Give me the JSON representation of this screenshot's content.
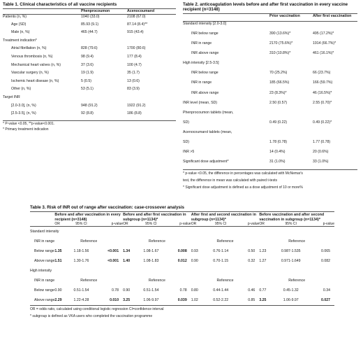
{
  "table1": {
    "title": "Table 1. Clinical characteristics of all vaccine recipients",
    "col_headers": [
      "",
      "Phenprocoumon",
      "Acenocoumarol"
    ],
    "rows": [
      {
        "label": "Patients (n, %)",
        "v1": "1040 (33.0)",
        "v2": "2108 (67.0)",
        "indent": false
      },
      {
        "label": "Age (SD)",
        "v1": "85.93 (9.1)",
        "v2": "87.14 (8.4)**",
        "indent": true
      },
      {
        "label": "Male (n, %)",
        "v1": "465 (44.7)",
        "v2": "915 (43.4)",
        "indent": true
      },
      {
        "label": "Treatment indication*",
        "v1": "",
        "v2": "",
        "indent": false
      },
      {
        "label": "Atrial fibrillation (n, %)",
        "v1": "828 (79.6)",
        "v2": "1700 (80.6)",
        "indent": true
      },
      {
        "label": "Venous thrombosis (n, %)",
        "v1": "98 (9.4)",
        "v2": "177 (8.4)",
        "indent": true
      },
      {
        "label": "Mechanical heart valves (n, %)",
        "v1": "37 (3.6)",
        "v2": "100 (4.7)",
        "indent": true
      },
      {
        "label": "Vascular surgery (n, %)",
        "v1": "19 (1.9)",
        "v2": "35 (1.7)",
        "indent": true
      },
      {
        "label": "Ischemic heart disease (n, %)",
        "v1": "5 (0.5)",
        "v2": "13 (0.6)",
        "indent": true
      },
      {
        "label": "Other (n, %)",
        "v1": "53 (5.1)",
        "v2": "83 (3.9)",
        "indent": true
      },
      {
        "label": "Target INR",
        "v1": "",
        "v2": "",
        "indent": false
      },
      {
        "label": "[2.0-3.0], (n, %)",
        "v1": "948 (91.2)",
        "v2": "1922 (91.2)",
        "indent": true
      },
      {
        "label": "[2.5-3.5], (n, %)",
        "v1": "92 (8.8)",
        "v2": "186 (8.8)",
        "indent": true
      }
    ],
    "footnotes": [
      "* P-value <0.05, **p-value<0.001.",
      "* Primary treatment indication"
    ]
  },
  "table2": {
    "title": "Table 2. anticoagulation levels before and after first vaccination in every vaccine recipient (n=3148)",
    "col_headers": [
      "",
      "Prior vaccination",
      "After first vaccination"
    ],
    "rows": [
      {
        "label": "Standard intensity [2.0-3.0]",
        "v1": "",
        "v2": "",
        "indent": false
      },
      {
        "label": "INR below range",
        "v1": "390 (13.6%)*",
        "v2": "495 (17.2%)*",
        "indent": true
      },
      {
        "label": "INR in range",
        "v1": "2170 (75.6%)*",
        "v2": "1914 (66.7%)*",
        "indent": true
      },
      {
        "label": "INR above range",
        "v1": "310 (10.8%)*",
        "v2": "461 (16.1%)*",
        "indent": true
      },
      {
        "label": "High intensity [2.5-3.5]",
        "v1": "",
        "v2": "",
        "indent": false
      },
      {
        "label": "INR below range",
        "v1": "70 (25.2%)",
        "v2": "66 (23.7%)",
        "indent": true
      },
      {
        "label": "INR in range",
        "v1": "185 (66.5%)",
        "v2": "166 (59.7%)",
        "indent": true
      },
      {
        "label": "INR above range",
        "v1": "23 (8.3%)*",
        "v2": "46 (16.5%)*",
        "indent": true
      },
      {
        "label": "INR level (mean, SD)",
        "v1": "2.50 (0.57)",
        "v2": "2.55 (0.70)*",
        "indent": false
      },
      {
        "label": "Phenprocoumon tablets (mean,",
        "v1": "",
        "v2": "",
        "indent": false
      },
      {
        "label": "SD)",
        "v1": "0.49 (0.22)",
        "v2": "0.49 (0.22)*",
        "indent": false
      },
      {
        "label": "Acenocoumarol tablets (mean,",
        "v1": "",
        "v2": "",
        "indent": false
      },
      {
        "label": "SD)",
        "v1": "1.78 (0.78)",
        "v2": "1.77 (0.78)",
        "indent": false
      },
      {
        "label": "INR >5",
        "v1": "14 (0.4%)",
        "v2": "20 (0.6%)",
        "indent": false
      },
      {
        "label": "Significant dose adjustment*",
        "v1": "31 (1.0%)",
        "v2": "33 (1.0%)",
        "indent": false
      }
    ],
    "footnotes": [
      "* p-value <0.05, the difference in percentages was calculated with McNemar's",
      "test, the difference in mean was calculated with paired t-tests",
      "* Significant dose adjustment is defined as a dose adjustment of 10 or more%"
    ]
  },
  "table3": {
    "title": "Table 3. Risk of INR out of range after vaccination: case-crossover analysis",
    "groups": [
      "Before and after vaccination in every recipient (n=3148)",
      "Before and after first vaccination in subgroup (n=1134)*",
      "After first and second vaccination in subgroup (n=1134)*",
      "Before vaccination and after second vaccination in subgroup (n=1134)*"
    ],
    "subheaders": [
      "OR",
      "95% CI",
      "p-value"
    ],
    "sections": [
      {
        "label": "Standard intensity",
        "rows": [
          {
            "label": "INR in range",
            "reference": true,
            "ref_text": "Reference"
          },
          {
            "label": "Below range",
            "reference": false,
            "cells": [
              {
                "or": "1.35",
                "ci": "1.18-1.56",
                "p": "<0.001",
                "bold": true
              },
              {
                "or": "1.34",
                "ci": "1.08-1.67",
                "p": "0.008",
                "bold": true
              },
              {
                "or": "0.93",
                "ci": "0.76-1.14",
                "p": "0.50",
                "bold": false
              },
              {
                "or": "1.23",
                "ci": "0.987-1.535",
                "p": "0.065",
                "bold": false
              }
            ]
          },
          {
            "label": "Above range",
            "reference": false,
            "cells": [
              {
                "or": "1.51",
                "ci": "1.30-1.76",
                "p": "<0.001",
                "bold": true
              },
              {
                "or": "1.40",
                "ci": "1.08-1.83",
                "p": "0.012",
                "bold": true
              },
              {
                "or": "0.90",
                "ci": "0.70-1.15",
                "p": "0.32",
                "bold": false
              },
              {
                "or": "1.27",
                "ci": "0.971-1.649",
                "p": "0.082",
                "bold": false
              }
            ]
          }
        ]
      },
      {
        "label": "High intensity",
        "rows": [
          {
            "label": "INR in range",
            "reference": true,
            "ref_text": "Reference"
          },
          {
            "label": "Below range",
            "reference": false,
            "cells": [
              {
                "or": "0.90",
                "ci": "0.51-1.54",
                "p": "0.78",
                "bold": false
              },
              {
                "or": "0.90",
                "ci": "0.51-1.54",
                "p": "0.78",
                "bold": false
              },
              {
                "or": "0.80",
                "ci": "0.44-1.44",
                "p": "0.46",
                "bold": false
              },
              {
                "or": "0.77",
                "ci": "0.45-1.32",
                "p": "0.34",
                "bold": false
              }
            ]
          },
          {
            "label": "Above range",
            "reference": false,
            "cells": [
              {
                "or": "2.29",
                "ci": "1.22-4.28",
                "p": "0.010",
                "bold": true
              },
              {
                "or": "3.25",
                "ci": "1.06-9.97",
                "p": "0.039",
                "bold": true
              },
              {
                "or": "1.02",
                "ci": "0.52-2.22",
                "p": "0.85",
                "bold": false
              },
              {
                "or": "3.25",
                "ci": "1.06-9.97",
                "p": "0.027",
                "bold": true
              }
            ]
          }
        ]
      }
    ],
    "footnotes": [
      "OR = odds ratio, calculated using conditional logistic regression CI=confidence interval",
      "* subgroup is defined as VKA users who completed the vaccination programme"
    ]
  }
}
